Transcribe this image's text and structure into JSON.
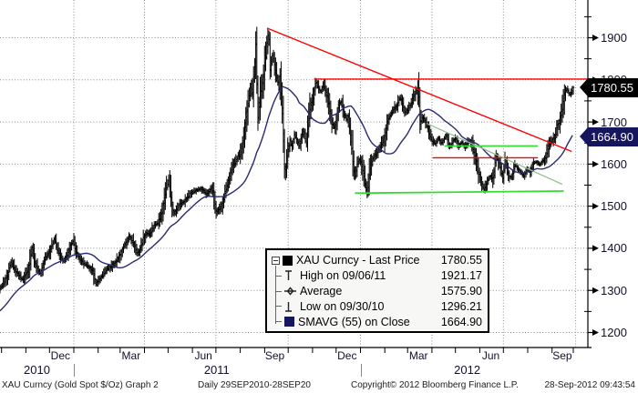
{
  "colors": {
    "price_bars": "#000000",
    "sma_line": "#2a2a72",
    "trend_red": "#ff0000",
    "green_bright": "#33dd33",
    "green_dim": "#8fbc8f",
    "grid": "#8c8c8c",
    "axis": "#000000",
    "badge_last_bg": "#000000",
    "badge_sma_bg": "#16165e"
  },
  "y_axis": {
    "labels": [
      "1900",
      "1800",
      "1700",
      "1600",
      "1500",
      "1400",
      "1300",
      "1200"
    ],
    "values": [
      1900,
      1800,
      1700,
      1600,
      1500,
      1400,
      1300,
      1200
    ],
    "minor_step": 50,
    "minor_top": 1950
  },
  "x_axis": {
    "months": [
      {
        "label": "Dec",
        "t": 77
      },
      {
        "label": "Mar",
        "t": 167
      },
      {
        "label": "Jun",
        "t": 259
      },
      {
        "label": "Sep",
        "t": 350
      },
      {
        "label": "Dec",
        "t": 442
      },
      {
        "label": "Mar",
        "t": 533
      },
      {
        "label": "Jun",
        "t": 625
      },
      {
        "label": "Sep",
        "t": 716
      }
    ],
    "years": [
      {
        "label": "2010",
        "t": 47
      },
      {
        "label": "2011",
        "t": 276
      },
      {
        "label": "2012",
        "t": 595
      }
    ],
    "year_separators_t": [
      94,
      459
    ],
    "month_start_ticks_t": [
      2,
      33,
      63,
      94,
      125,
      153,
      184,
      214,
      245,
      275,
      306,
      337,
      367,
      398,
      428,
      459,
      490,
      519,
      550,
      580,
      611,
      641,
      672,
      703,
      730
    ],
    "grid_vertical_t": [
      94,
      184,
      275,
      367,
      459,
      550,
      641,
      733
    ]
  },
  "badges": [
    {
      "label": "1780.55",
      "price": 1780.55,
      "bg": "#000000"
    },
    {
      "label": "1664.90",
      "price": 1664.9,
      "bg": "#16165e"
    }
  ],
  "legend": {
    "rows": [
      {
        "icon": "black-square",
        "label": "XAU Curncy - Last Price",
        "value": "1780.55"
      },
      {
        "icon": "high-marker",
        "label": "High on 09/06/11",
        "value": "1921.17"
      },
      {
        "icon": "average-marker",
        "label": "Average",
        "value": "1575.90"
      },
      {
        "icon": "low-marker",
        "label": "Low on 09/30/10",
        "value": "1296.21"
      },
      {
        "icon": "navy-square",
        "label": "SMAVG (55) on Close",
        "value": "1664.90"
      }
    ]
  },
  "footer": {
    "security": "XAU Curncy (Gold Spot  $/Oz) Graph 2",
    "range": "Daily 29SEP2010-28SEP20",
    "copyright": "Copyright© 2012 Bloomberg Finance L.P.",
    "timestamp": "28-Sep-2012 09:43:54"
  },
  "chart_data": {
    "type": "ohlc-bar",
    "title": "XAU Curncy - Last Price",
    "security": "XAU Curncy (Gold Spot $/Oz)",
    "period": "Daily 29SEP2010 - 28SEP2012",
    "ylim": [
      1150,
      1990
    ],
    "y_major_ticks": [
      1200,
      1300,
      1400,
      1500,
      1600,
      1700,
      1800,
      1900
    ],
    "stats": {
      "last_price": 1780.55,
      "high": {
        "date": "09/06/11",
        "value": 1921.17
      },
      "average": 1575.9,
      "low": {
        "date": "09/30/10",
        "value": 1296.21
      },
      "smavg_55_on_close": 1664.9
    },
    "sma_window_days": 55,
    "price_anchors_days_price": [
      [
        0,
        1307
      ],
      [
        3,
        1312
      ],
      [
        6,
        1322
      ],
      [
        10,
        1340
      ],
      [
        14,
        1368
      ],
      [
        18,
        1352
      ],
      [
        22,
        1342
      ],
      [
        26,
        1330
      ],
      [
        29,
        1325
      ],
      [
        33,
        1342
      ],
      [
        37,
        1355
      ],
      [
        41,
        1405
      ],
      [
        44,
        1365
      ],
      [
        48,
        1352
      ],
      [
        51,
        1340
      ],
      [
        55,
        1362
      ],
      [
        58,
        1378
      ],
      [
        62,
        1388
      ],
      [
        65,
        1400
      ],
      [
        69,
        1423
      ],
      [
        73,
        1398
      ],
      [
        76,
        1385
      ],
      [
        80,
        1372
      ],
      [
        83,
        1375
      ],
      [
        87,
        1392
      ],
      [
        90,
        1405
      ],
      [
        93,
        1420
      ],
      [
        97,
        1390
      ],
      [
        101,
        1378
      ],
      [
        104,
        1368
      ],
      [
        108,
        1362
      ],
      [
        111,
        1358
      ],
      [
        115,
        1352
      ],
      [
        118,
        1345
      ],
      [
        122,
        1316
      ],
      [
        126,
        1326
      ],
      [
        129,
        1332
      ],
      [
        133,
        1342
      ],
      [
        136,
        1350
      ],
      [
        140,
        1355
      ],
      [
        143,
        1360
      ],
      [
        147,
        1368
      ],
      [
        150,
        1375
      ],
      [
        154,
        1390
      ],
      [
        157,
        1403
      ],
      [
        161,
        1415
      ],
      [
        164,
        1428
      ],
      [
        168,
        1418
      ],
      [
        171,
        1405
      ],
      [
        175,
        1388
      ],
      [
        179,
        1402
      ],
      [
        182,
        1420
      ],
      [
        186,
        1436
      ],
      [
        190,
        1432
      ],
      [
        194,
        1444
      ],
      [
        197,
        1456
      ],
      [
        201,
        1462
      ],
      [
        204,
        1474
      ],
      [
        208,
        1502
      ],
      [
        212,
        1546
      ],
      [
        215,
        1564
      ],
      [
        218,
        1512
      ],
      [
        221,
        1482
      ],
      [
        225,
        1494
      ],
      [
        228,
        1502
      ],
      [
        232,
        1508
      ],
      [
        235,
        1512
      ],
      [
        239,
        1522
      ],
      [
        242,
        1530
      ],
      [
        246,
        1534
      ],
      [
        249,
        1537
      ],
      [
        253,
        1540
      ],
      [
        256,
        1543
      ],
      [
        260,
        1534
      ],
      [
        263,
        1526
      ],
      [
        267,
        1538
      ],
      [
        270,
        1546
      ],
      [
        275,
        1488
      ],
      [
        278,
        1492
      ],
      [
        281,
        1497
      ],
      [
        285,
        1520
      ],
      [
        288,
        1546
      ],
      [
        292,
        1570
      ],
      [
        295,
        1590
      ],
      [
        299,
        1602
      ],
      [
        302,
        1614
      ],
      [
        306,
        1628
      ],
      [
        310,
        1660
      ],
      [
        313,
        1715
      ],
      [
        316,
        1745
      ],
      [
        319,
        1790
      ],
      [
        321,
        1755
      ],
      [
        324,
        1830
      ],
      [
        326,
        1898
      ],
      [
        328,
        1705
      ],
      [
        331,
        1762
      ],
      [
        334,
        1794
      ],
      [
        336,
        1826
      ],
      [
        339,
        1870
      ],
      [
        342,
        1921
      ],
      [
        344,
        1820
      ],
      [
        347,
        1862
      ],
      [
        349,
        1840
      ],
      [
        351,
        1820
      ],
      [
        353,
        1802
      ],
      [
        355,
        1780
      ],
      [
        357,
        1810
      ],
      [
        359,
        1740
      ],
      [
        361,
        1655
      ],
      [
        362,
        1595
      ],
      [
        363,
        1545
      ],
      [
        364,
        1617
      ],
      [
        366,
        1622
      ],
      [
        369,
        1658
      ],
      [
        372,
        1640
      ],
      [
        375,
        1672
      ],
      [
        378,
        1655
      ],
      [
        381,
        1642
      ],
      [
        384,
        1668
      ],
      [
        387,
        1682
      ],
      [
        390,
        1642
      ],
      [
        393,
        1712
      ],
      [
        396,
        1742
      ],
      [
        399,
        1760
      ],
      [
        402,
        1795
      ],
      [
        405,
        1782
      ],
      [
        408,
        1770
      ],
      [
        411,
        1788
      ],
      [
        414,
        1778
      ],
      [
        417,
        1758
      ],
      [
        420,
        1725
      ],
      [
        423,
        1695
      ],
      [
        426,
        1685
      ],
      [
        429,
        1712
      ],
      [
        432,
        1746
      ],
      [
        435,
        1744
      ],
      [
        438,
        1720
      ],
      [
        441,
        1708
      ],
      [
        444,
        1712
      ],
      [
        446,
        1670
      ],
      [
        448,
        1640
      ],
      [
        450,
        1590
      ],
      [
        452,
        1574
      ],
      [
        455,
        1600
      ],
      [
        458,
        1610
      ],
      [
        461,
        1592
      ],
      [
        464,
        1565
      ],
      [
        466,
        1545
      ],
      [
        467,
        1526
      ],
      [
        469,
        1553
      ],
      [
        471,
        1590
      ],
      [
        475,
        1616
      ],
      [
        479,
        1622
      ],
      [
        483,
        1640
      ],
      [
        487,
        1652
      ],
      [
        490,
        1664
      ],
      [
        493,
        1702
      ],
      [
        497,
        1716
      ],
      [
        501,
        1730
      ],
      [
        505,
        1738
      ],
      [
        509,
        1758
      ],
      [
        512,
        1748
      ],
      [
        515,
        1722
      ],
      [
        519,
        1728
      ],
      [
        523,
        1742
      ],
      [
        527,
        1760
      ],
      [
        531,
        1778
      ],
      [
        533,
        1786
      ],
      [
        535,
        1696
      ],
      [
        538,
        1710
      ],
      [
        542,
        1700
      ],
      [
        546,
        1676
      ],
      [
        550,
        1655
      ],
      [
        554,
        1648
      ],
      [
        558,
        1662
      ],
      [
        562,
        1650
      ],
      [
        566,
        1662
      ],
      [
        569,
        1668
      ],
      [
        572,
        1640
      ],
      [
        576,
        1652
      ],
      [
        580,
        1662
      ],
      [
        584,
        1642
      ],
      [
        588,
        1652
      ],
      [
        592,
        1640
      ],
      [
        596,
        1654
      ],
      [
        600,
        1652
      ],
      [
        604,
        1622
      ],
      [
        608,
        1588
      ],
      [
        612,
        1562
      ],
      [
        616,
        1538
      ],
      [
        620,
        1558
      ],
      [
        624,
        1572
      ],
      [
        628,
        1562
      ],
      [
        631,
        1622
      ],
      [
        634,
        1608
      ],
      [
        637,
        1598
      ],
      [
        640,
        1562
      ],
      [
        643,
        1612
      ],
      [
        646,
        1582
      ],
      [
        649,
        1568
      ],
      [
        652,
        1572
      ],
      [
        655,
        1598
      ],
      [
        659,
        1590
      ],
      [
        663,
        1580
      ],
      [
        667,
        1572
      ],
      [
        671,
        1590
      ],
      [
        675,
        1578
      ],
      [
        679,
        1602
      ],
      [
        683,
        1605
      ],
      [
        687,
        1598
      ],
      [
        691,
        1608
      ],
      [
        695,
        1616
      ],
      [
        698,
        1640
      ],
      [
        702,
        1655
      ],
      [
        706,
        1662
      ],
      [
        709,
        1690
      ],
      [
        712,
        1700
      ],
      [
        715,
        1722
      ],
      [
        717,
        1740
      ],
      [
        719,
        1770
      ],
      [
        722,
        1778
      ],
      [
        725,
        1765
      ],
      [
        728,
        1772
      ],
      [
        730,
        1780.55
      ]
    ],
    "sma_seed_anchors": [
      [
        -80,
        1178
      ],
      [
        -60,
        1198
      ],
      [
        -45,
        1215
      ],
      [
        -30,
        1242
      ],
      [
        -20,
        1262
      ],
      [
        -10,
        1290
      ],
      [
        -3,
        1300
      ]
    ],
    "annotations": [
      {
        "name": "resistance-diagonal",
        "color": "#ff0000",
        "width": 1.4,
        "from": [
          340,
          1923
        ],
        "to": [
          728,
          1630
        ]
      },
      {
        "name": "resistance-1800",
        "color": "#ff0000",
        "width": 1.4,
        "from": [
          400,
          1802
        ],
        "to": [
          748,
          1802
        ]
      },
      {
        "name": "support-red-short",
        "color": "#ff0000",
        "width": 1.4,
        "from": [
          551,
          1615
        ],
        "to": [
          685,
          1615
        ]
      },
      {
        "name": "green-horizontal",
        "color": "#33dd33",
        "width": 1.8,
        "from": [
          566,
          1643
        ],
        "to": [
          685,
          1643
        ]
      },
      {
        "name": "green-bottom",
        "color": "#33dd33",
        "width": 1.8,
        "from": [
          452,
          1531
        ],
        "to": [
          718,
          1536
        ]
      },
      {
        "name": "green-dim-diagonal",
        "color": "#8fbc8f",
        "width": 1.2,
        "from": [
          543,
          1697
        ],
        "to": [
          716,
          1552
        ]
      }
    ]
  }
}
